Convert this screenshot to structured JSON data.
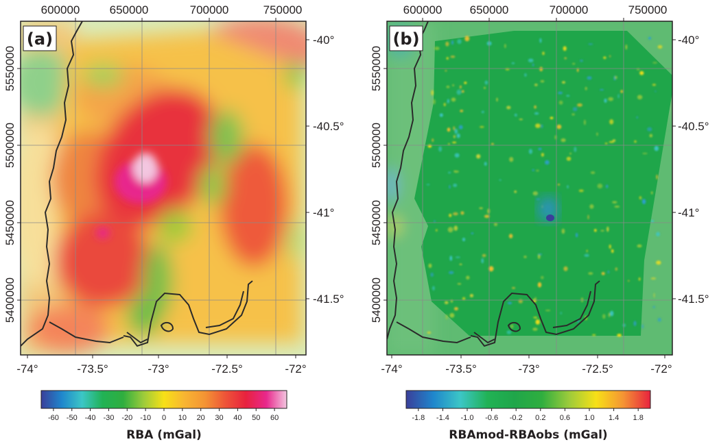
{
  "panels": [
    {
      "id": "a",
      "label": "(a)",
      "x_ticks_top": [
        "600000",
        "650000",
        "700000",
        "750000"
      ],
      "y_ticks_left": [
        "5550000",
        "5500000",
        "5450000",
        "5400000"
      ],
      "lat_ticks_right": [
        "-40°",
        "-40.5°",
        "-41°",
        "-41.5°"
      ],
      "lon_ticks_bottom": [
        "-74°",
        "-73.5°",
        "-73°",
        "-72.5°",
        "-72°"
      ],
      "colorbar": {
        "ticks": [
          "-60",
          "-50",
          "-40",
          "-30",
          "-20",
          "-10",
          "0",
          "10",
          "20",
          "30",
          "40",
          "50",
          "60"
        ],
        "title": "RBA (mGal)",
        "colors": [
          "#3a3f9a",
          "#1f86cc",
          "#3cc6c6",
          "#21b255",
          "#2fae3f",
          "#9ccb3b",
          "#f7e017",
          "#f8b532",
          "#f49434",
          "#ee5438",
          "#e8223e",
          "#e8288c",
          "#f3c6e0"
        ]
      }
    },
    {
      "id": "b",
      "label": "(b)",
      "x_ticks_top": [
        "600000",
        "650000",
        "700000",
        "750000"
      ],
      "y_ticks_left": [
        "5550000",
        "5500000",
        "5450000",
        "5400000"
      ],
      "lat_ticks_right": [
        "-40°",
        "-40.5°",
        "-41°",
        "-41.5°"
      ],
      "lon_ticks_bottom": [
        "-74°",
        "-73.5°",
        "-73°",
        "-72.5°",
        "-72°"
      ],
      "colorbar": {
        "ticks": [
          "-1.8",
          "-1.4",
          "-1.0",
          "-0.6",
          "-0.2",
          "0.2",
          "0.6",
          "1.0",
          "1.4",
          "1.8"
        ],
        "title": "RBAmod-RBAobs (mGal)",
        "colors": [
          "#3a3f9a",
          "#1f86cc",
          "#3cc6c6",
          "#21b255",
          "#20a64a",
          "#2fae3f",
          "#9ccb3b",
          "#f7e017",
          "#f49434",
          "#e8223e"
        ]
      }
    }
  ],
  "map_colors": {
    "ocean_a": "#cfe7b2",
    "ocean_b": "#5fbb72",
    "land_b": "#1fa64a",
    "coast": "#2a2a2a",
    "grid": "#8a8a8a"
  }
}
